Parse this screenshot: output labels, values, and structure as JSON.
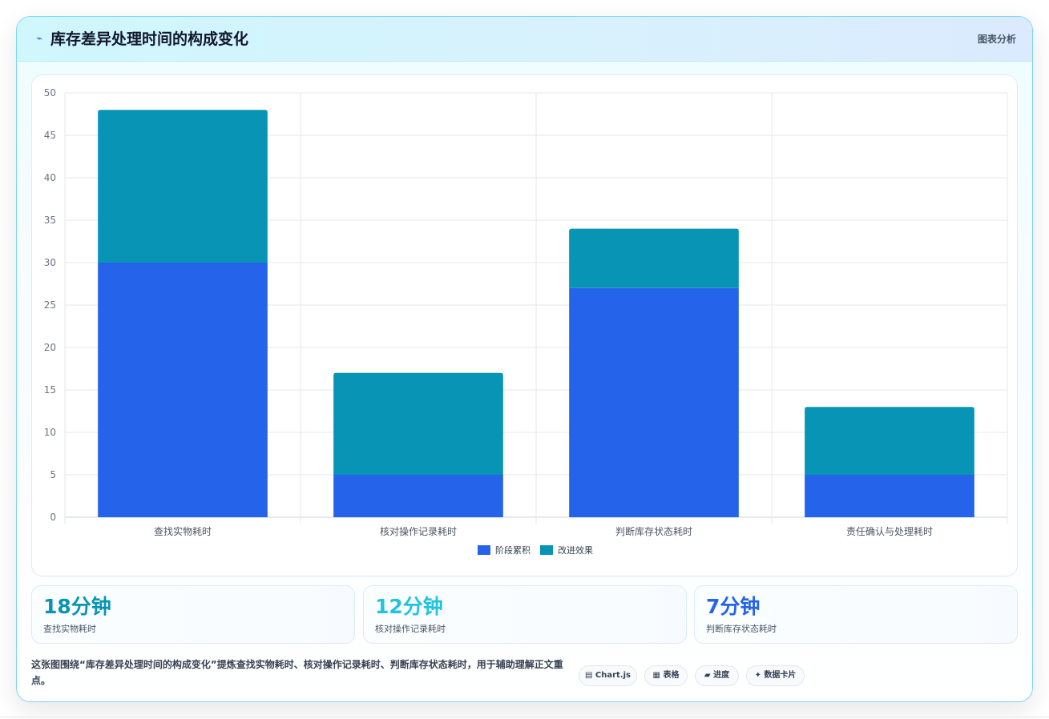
{
  "header": {
    "icon": "chart-line-icon",
    "title": "库存差异处理时间的构成变化",
    "tag": "图表分析"
  },
  "chart_data": {
    "type": "bar",
    "stacked": true,
    "categories": [
      "查找实物耗时",
      "核对操作记录耗时",
      "判断库存状态耗时",
      "责任确认与处理耗时"
    ],
    "series": [
      {
        "name": "阶段累积",
        "values": [
          30,
          5,
          27,
          5
        ],
        "color": "#2563eb"
      },
      {
        "name": "改进效果",
        "values": [
          18,
          12,
          7,
          8
        ],
        "color": "#0894b4"
      }
    ],
    "ylim": [
      0,
      50
    ],
    "yticks": [
      0,
      5,
      10,
      15,
      20,
      25,
      30,
      35,
      40,
      45,
      50
    ],
    "grid": true,
    "legend": "bottom"
  },
  "stats": [
    {
      "value": "18分钟",
      "label": "查找实物耗时",
      "color": "#0894b4"
    },
    {
      "value": "12分钟",
      "label": "核对操作记录耗时",
      "color": "#22c3e0"
    },
    {
      "value": "7分钟",
      "label": "判断库存状态耗时",
      "color": "#2563eb"
    }
  ],
  "footer": {
    "text": "这张图围绕“库存差异处理时间的构成变化”提炼查找实物耗时、核对操作记录耗时、判断库存状态耗时，用于辅助理解正文重点。",
    "tags": [
      {
        "icon": "chart-icon",
        "glyph": "▤",
        "label": "Chart.js"
      },
      {
        "icon": "table-icon",
        "glyph": "▦",
        "label": "表格"
      },
      {
        "icon": "progress-icon",
        "glyph": "▰",
        "label": "进度"
      },
      {
        "icon": "sparkle-icon",
        "glyph": "✦",
        "label": "数据卡片"
      }
    ]
  }
}
